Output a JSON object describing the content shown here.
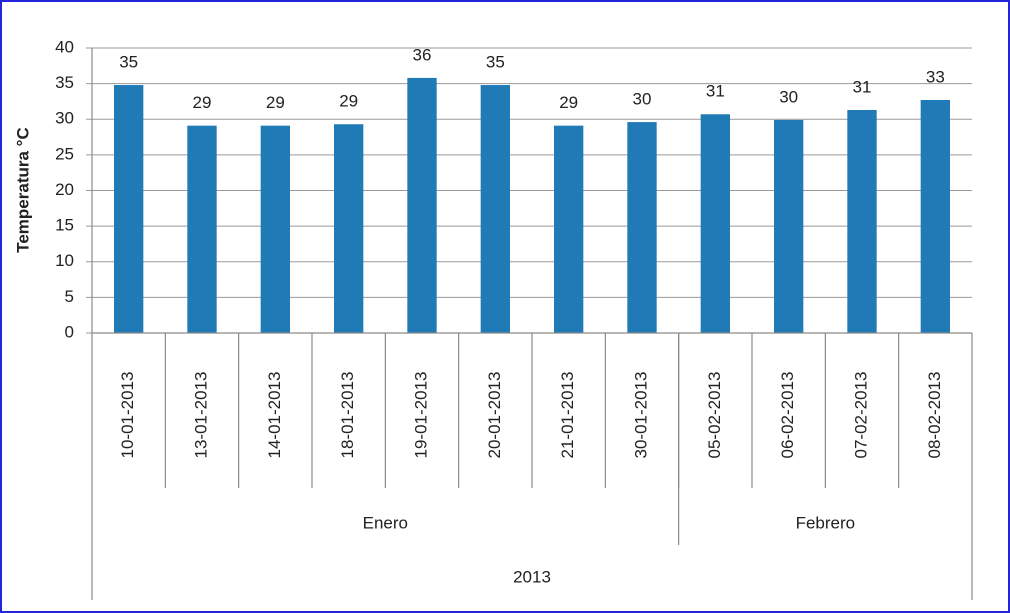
{
  "chart_data": {
    "type": "bar",
    "ylabel": "Temperatura  °C",
    "year": "2013",
    "color": "#1f7ab5",
    "ylim": [
      0,
      40
    ],
    "yticks": [
      0,
      5,
      10,
      15,
      20,
      25,
      30,
      35,
      40
    ],
    "grid": true,
    "groups": [
      {
        "name": "Enero",
        "categories": [
          "10-01-2013",
          "13-01-2013",
          "14-01-2013",
          "18-01-2013",
          "19-01-2013",
          "20-01-2013",
          "21-01-2013",
          "30-01-2013"
        ],
        "values": [
          34.8,
          29.1,
          29.1,
          29.3,
          35.8,
          34.8,
          29.1,
          29.6
        ],
        "value_labels": [
          "35",
          "29",
          "29",
          "29",
          "36",
          "35",
          "29",
          "30"
        ]
      },
      {
        "name": "Febrero",
        "categories": [
          "05-02-2013",
          "06-02-2013",
          "07-02-2013",
          "08-02-2013"
        ],
        "values": [
          30.7,
          29.9,
          31.3,
          32.7
        ],
        "value_labels": [
          "31",
          "30",
          "31",
          "33"
        ]
      }
    ]
  }
}
